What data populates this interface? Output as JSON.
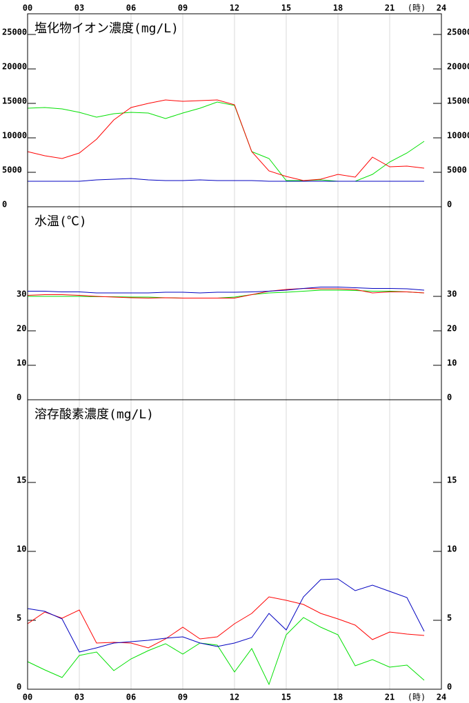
{
  "x_axis": {
    "ticks": [
      {
        "value": 0,
        "label": "00"
      },
      {
        "value": 3,
        "label": "03"
      },
      {
        "value": 6,
        "label": "06"
      },
      {
        "value": 9,
        "label": "09"
      },
      {
        "value": 12,
        "label": "12"
      },
      {
        "value": 15,
        "label": "15"
      },
      {
        "value": 18,
        "label": "18"
      },
      {
        "value": 21,
        "label": "21"
      },
      {
        "value": 24,
        "label": "24"
      }
    ],
    "unit": "(時)",
    "lim": [
      0,
      24
    ]
  },
  "chart_data": [
    {
      "type": "line",
      "title": "塩化物イオン濃度(mg/L)",
      "x": [
        0,
        1,
        2,
        3,
        4,
        5,
        6,
        7,
        8,
        9,
        10,
        11,
        12,
        13,
        14,
        15,
        16,
        17,
        18,
        19,
        20,
        21,
        22,
        23
      ],
      "ylim": [
        0,
        28000
      ],
      "yticks": [
        0,
        5000,
        10000,
        15000,
        20000,
        25000
      ],
      "series": [
        {
          "color": "#00e000",
          "values": [
            14300,
            14400,
            14200,
            13700,
            13000,
            13500,
            13700,
            13600,
            12800,
            13600,
            14300,
            15200,
            14700,
            8000,
            7000,
            3800,
            3800,
            3900,
            3700,
            3700,
            4700,
            6500,
            7800,
            9500
          ]
        },
        {
          "color": "#ff0000",
          "values": [
            8000,
            7400,
            7000,
            7800,
            9800,
            12600,
            14400,
            15000,
            15500,
            15300,
            15400,
            15500,
            14800,
            8000,
            5200,
            4400,
            3800,
            4000,
            4700,
            4300,
            7200,
            5800,
            5900,
            5600
          ]
        },
        {
          "color": "#0000c0",
          "values": [
            3700,
            3700,
            3700,
            3700,
            3900,
            4000,
            4100,
            3900,
            3800,
            3800,
            3900,
            3800,
            3800,
            3800,
            3700,
            3700,
            3700,
            3700,
            3700,
            3700,
            3700,
            3700,
            3700,
            3700
          ]
        }
      ]
    },
    {
      "type": "line",
      "title": "水温(℃)",
      "x": [
        0,
        1,
        2,
        3,
        4,
        5,
        6,
        7,
        8,
        9,
        10,
        11,
        12,
        13,
        14,
        15,
        16,
        17,
        18,
        19,
        20,
        21,
        22,
        23
      ],
      "ylim": [
        0,
        56
      ],
      "yticks": [
        0,
        10,
        20,
        30
      ],
      "series": [
        {
          "color": "#00e000",
          "values": [
            30,
            30,
            30,
            30,
            29.9,
            29.9,
            29.8,
            29.8,
            29.6,
            29.5,
            29.5,
            29.5,
            29.8,
            30.5,
            31,
            31.2,
            31.5,
            31.8,
            31.8,
            31.7,
            31.5,
            31.5,
            31.3,
            31
          ]
        },
        {
          "color": "#ff0000",
          "values": [
            30.3,
            30.5,
            30.5,
            30.3,
            30,
            29.8,
            29.6,
            29.5,
            29.6,
            29.5,
            29.5,
            29.5,
            29.5,
            30.5,
            31.5,
            32,
            32.3,
            32.2,
            32.2,
            32,
            31,
            31.3,
            31.3,
            31
          ]
        },
        {
          "color": "#0000c0",
          "values": [
            31.5,
            31.5,
            31.3,
            31.3,
            31,
            31,
            31,
            31,
            31.2,
            31.2,
            31,
            31.2,
            31.2,
            31.3,
            31.5,
            31.8,
            32.3,
            32.7,
            32.7,
            32.5,
            32.3,
            32.3,
            32.2,
            31.8
          ]
        }
      ]
    },
    {
      "type": "line",
      "title": "溶存酸素濃度(mg/L)",
      "x": [
        0,
        1,
        2,
        3,
        4,
        5,
        6,
        7,
        8,
        9,
        10,
        11,
        12,
        13,
        14,
        15,
        16,
        17,
        18,
        19,
        20,
        21,
        22,
        23
      ],
      "ylim": [
        0,
        21
      ],
      "yticks": [
        0,
        5,
        10,
        15
      ],
      "series": [
        {
          "color": "#00e000",
          "values": [
            2.0,
            1.4,
            0.85,
            2.45,
            2.7,
            1.35,
            2.2,
            2.8,
            3.3,
            2.55,
            3.35,
            3.2,
            1.25,
            2.95,
            0.35,
            3.95,
            5.2,
            4.5,
            3.95,
            1.7,
            2.15,
            1.6,
            1.75,
            0.65
          ]
        },
        {
          "color": "#ff0000",
          "values": [
            4.75,
            5.6,
            5.15,
            5.75,
            3.35,
            3.4,
            3.35,
            3.0,
            3.65,
            4.5,
            3.65,
            3.8,
            4.75,
            5.5,
            6.7,
            6.45,
            6.15,
            5.5,
            5.1,
            4.65,
            3.6,
            4.15,
            4.0,
            3.9
          ]
        },
        {
          "color": "#0000c0",
          "values": [
            5.85,
            5.65,
            5.1,
            2.7,
            3.0,
            3.35,
            3.45,
            3.55,
            3.7,
            3.8,
            3.35,
            3.1,
            3.35,
            3.75,
            5.5,
            4.3,
            6.7,
            7.95,
            8.0,
            7.15,
            7.55,
            7.1,
            6.65,
            4.2
          ]
        }
      ]
    }
  ]
}
